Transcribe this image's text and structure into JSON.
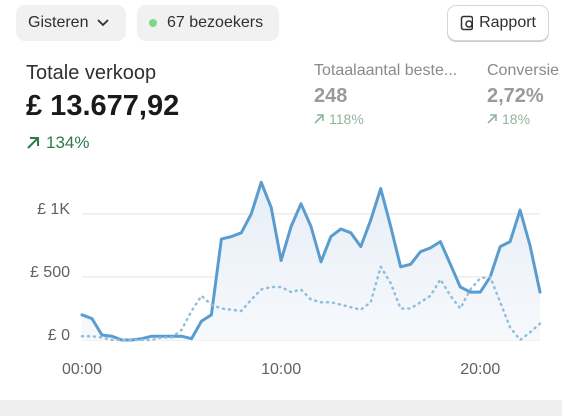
{
  "toolbar": {
    "period": "Gisteren",
    "visitors": "67 bezoekers",
    "report": "Rapport"
  },
  "metrics": [
    {
      "label": "Totale verkoop",
      "value": "£ 13.677,92",
      "change": "134%"
    },
    {
      "label": "Totaalaantal beste...",
      "value": "248",
      "change": "118%"
    },
    {
      "label": "Conversie",
      "value": "2,72%",
      "change": "18%"
    }
  ],
  "chart_data": {
    "type": "line",
    "x": [
      0,
      0.5,
      1,
      1.5,
      2,
      2.5,
      3,
      3.5,
      4,
      4.5,
      5,
      5.5,
      6,
      6.5,
      7,
      7.5,
      8,
      8.5,
      9,
      9.5,
      10,
      10.5,
      11,
      11.5,
      12,
      12.5,
      13,
      13.5,
      14,
      14.5,
      15,
      15.5,
      16,
      16.5,
      17,
      17.5,
      18,
      18.5,
      19,
      19.5,
      20,
      20.5,
      21,
      21.5,
      22,
      22.5,
      23
    ],
    "series": [
      {
        "color": "#5b9ccf",
        "style": "solid",
        "values": [
          200,
          170,
          40,
          30,
          0,
          0,
          10,
          30,
          30,
          30,
          30,
          10,
          150,
          200,
          800,
          820,
          850,
          1000,
          1250,
          1050,
          630,
          900,
          1080,
          900,
          620,
          820,
          880,
          850,
          740,
          950,
          1200,
          900,
          580,
          600,
          700,
          730,
          780,
          600,
          420,
          380,
          380,
          500,
          740,
          780,
          1030,
          750,
          380
        ]
      },
      {
        "color": "#8fbfdc",
        "style": "dotted",
        "values": [
          30,
          30,
          20,
          0,
          0,
          0,
          0,
          0,
          20,
          20,
          80,
          230,
          350,
          280,
          250,
          240,
          230,
          320,
          400,
          420,
          420,
          380,
          400,
          320,
          300,
          300,
          280,
          260,
          240,
          300,
          580,
          450,
          250,
          250,
          300,
          350,
          480,
          350,
          250,
          400,
          490,
          500,
          300,
          100,
          0,
          60,
          130
        ]
      }
    ],
    "xlim": [
      0,
      23
    ],
    "xticks": [
      {
        "value": 0,
        "label": "00:00"
      },
      {
        "value": 10,
        "label": "10:00"
      },
      {
        "value": 20,
        "label": "20:00"
      }
    ],
    "ylim": [
      0,
      1300
    ],
    "yticks": [
      {
        "value": 0,
        "label": "£ 0"
      },
      {
        "value": 500,
        "label": "£ 500"
      },
      {
        "value": 1000,
        "label": "£ 1K"
      }
    ],
    "grid": true
  }
}
